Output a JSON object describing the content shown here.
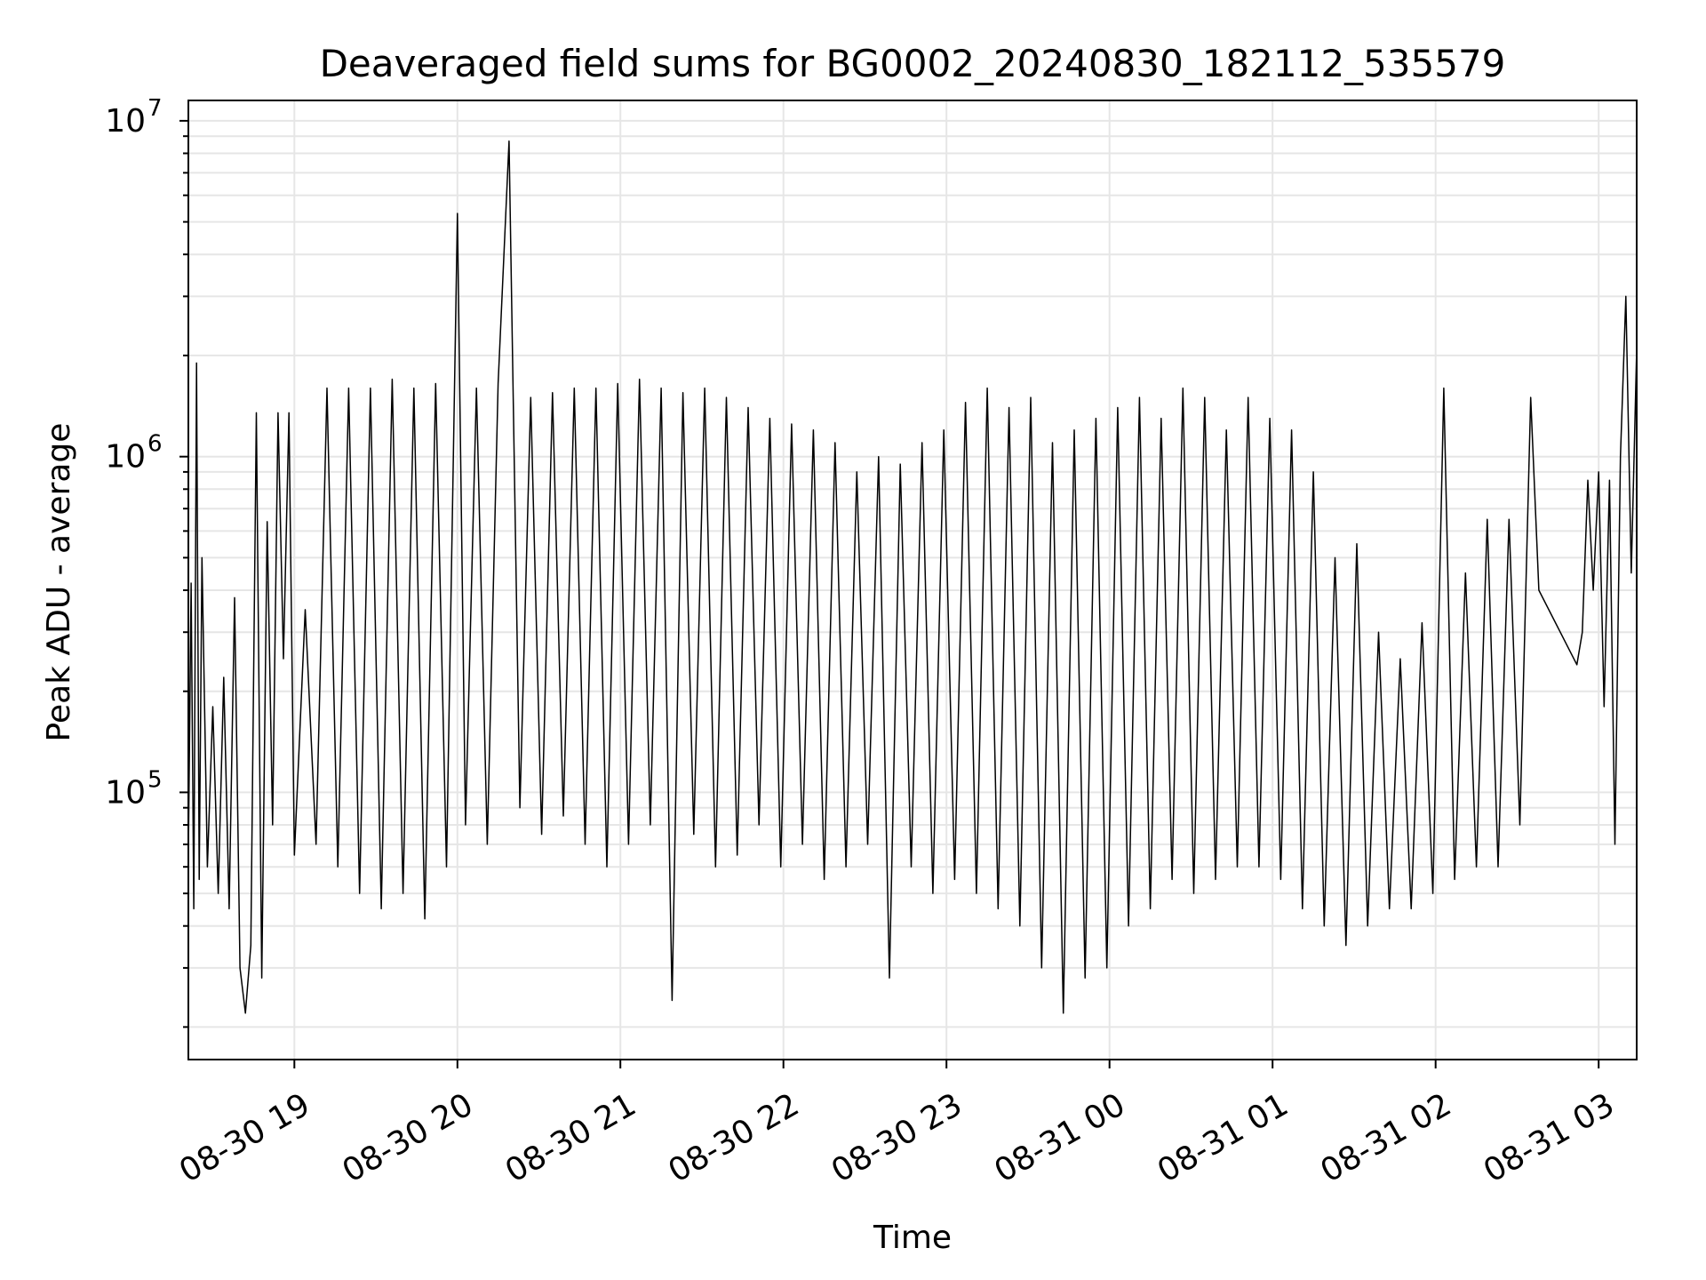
{
  "chart_data": {
    "type": "line",
    "title": "Deaveraged field sums for BG0002_20240830_182112_535579",
    "xlabel": "Time",
    "ylabel": "Peak ADU - average",
    "x_tick_labels": [
      "08-30 19",
      "08-30 20",
      "08-30 21",
      "08-30 22",
      "08-30 23",
      "08-31 00",
      "08-31 01",
      "08-31 02",
      "08-31 03"
    ],
    "x_tick_times": [
      "2024-08-30 19:00",
      "2024-08-30 20:00",
      "2024-08-30 21:00",
      "2024-08-30 22:00",
      "2024-08-30 23:00",
      "2024-08-31 00:00",
      "2024-08-31 01:00",
      "2024-08-31 02:00",
      "2024-08-31 03:00"
    ],
    "y_scale": "log",
    "y_tick_labels": [
      {
        "base": "10",
        "exp": "5"
      },
      {
        "base": "10",
        "exp": "6"
      },
      {
        "base": "10",
        "exp": "7"
      }
    ],
    "y_tick_values": [
      100000,
      1000000,
      10000000
    ],
    "xlim": [
      "2024-08-30 18:21",
      "2024-08-31 03:14"
    ],
    "ylim": [
      16000,
      11500000
    ],
    "grid": true,
    "line_color": "#000000",
    "series": [
      {
        "points": [
          [
            "2024-08-30 18:21",
            65000
          ],
          [
            "2024-08-30 18:22",
            420000
          ],
          [
            "2024-08-30 18:23",
            45000
          ],
          [
            "2024-08-30 18:24",
            1900000
          ],
          [
            "2024-08-30 18:25",
            55000
          ],
          [
            "2024-08-30 18:26",
            500000
          ],
          [
            "2024-08-30 18:28",
            60000
          ],
          [
            "2024-08-30 18:30",
            180000
          ],
          [
            "2024-08-30 18:32",
            50000
          ],
          [
            "2024-08-30 18:34",
            220000
          ],
          [
            "2024-08-30 18:36",
            45000
          ],
          [
            "2024-08-30 18:38",
            380000
          ],
          [
            "2024-08-30 18:40",
            30000
          ],
          [
            "2024-08-30 18:42",
            22000
          ],
          [
            "2024-08-30 18:44",
            35000
          ],
          [
            "2024-08-30 18:46",
            1350000
          ],
          [
            "2024-08-30 18:48",
            28000
          ],
          [
            "2024-08-30 18:50",
            640000
          ],
          [
            "2024-08-30 18:52",
            80000
          ],
          [
            "2024-08-30 18:54",
            1350000
          ],
          [
            "2024-08-30 18:56",
            250000
          ],
          [
            "2024-08-30 18:58",
            1350000
          ],
          [
            "2024-08-30 19:00",
            65000
          ],
          [
            "2024-08-30 19:04",
            350000
          ],
          [
            "2024-08-30 19:08",
            70000
          ],
          [
            "2024-08-30 19:12",
            1600000
          ],
          [
            "2024-08-30 19:16",
            60000
          ],
          [
            "2024-08-30 19:20",
            1600000
          ],
          [
            "2024-08-30 19:24",
            50000
          ],
          [
            "2024-08-30 19:28",
            1600000
          ],
          [
            "2024-08-30 19:32",
            45000
          ],
          [
            "2024-08-30 19:36",
            1700000
          ],
          [
            "2024-08-30 19:40",
            50000
          ],
          [
            "2024-08-30 19:44",
            1600000
          ],
          [
            "2024-08-30 19:48",
            42000
          ],
          [
            "2024-08-30 19:52",
            1650000
          ],
          [
            "2024-08-30 19:56",
            60000
          ],
          [
            "2024-08-30 20:00",
            5300000
          ],
          [
            "2024-08-30 20:03",
            80000
          ],
          [
            "2024-08-30 20:07",
            1600000
          ],
          [
            "2024-08-30 20:11",
            70000
          ],
          [
            "2024-08-30 20:15",
            1650000
          ],
          [
            "2024-08-30 20:19",
            8700000
          ],
          [
            "2024-08-30 20:23",
            90000
          ],
          [
            "2024-08-30 20:27",
            1500000
          ],
          [
            "2024-08-30 20:31",
            75000
          ],
          [
            "2024-08-30 20:35",
            1550000
          ],
          [
            "2024-08-30 20:39",
            85000
          ],
          [
            "2024-08-30 20:43",
            1600000
          ],
          [
            "2024-08-30 20:47",
            70000
          ],
          [
            "2024-08-30 20:51",
            1600000
          ],
          [
            "2024-08-30 20:55",
            60000
          ],
          [
            "2024-08-30 20:59",
            1650000
          ],
          [
            "2024-08-30 21:03",
            70000
          ],
          [
            "2024-08-30 21:07",
            1700000
          ],
          [
            "2024-08-30 21:11",
            80000
          ],
          [
            "2024-08-30 21:15",
            1600000
          ],
          [
            "2024-08-30 21:19",
            24000
          ],
          [
            "2024-08-30 21:23",
            1550000
          ],
          [
            "2024-08-30 21:27",
            75000
          ],
          [
            "2024-08-30 21:31",
            1600000
          ],
          [
            "2024-08-30 21:35",
            60000
          ],
          [
            "2024-08-30 21:39",
            1500000
          ],
          [
            "2024-08-30 21:43",
            65000
          ],
          [
            "2024-08-30 21:47",
            1400000
          ],
          [
            "2024-08-30 21:51",
            80000
          ],
          [
            "2024-08-30 21:55",
            1300000
          ],
          [
            "2024-08-30 21:59",
            60000
          ],
          [
            "2024-08-30 22:03",
            1250000
          ],
          [
            "2024-08-30 22:07",
            70000
          ],
          [
            "2024-08-30 22:11",
            1200000
          ],
          [
            "2024-08-30 22:15",
            55000
          ],
          [
            "2024-08-30 22:19",
            1100000
          ],
          [
            "2024-08-30 22:23",
            60000
          ],
          [
            "2024-08-30 22:27",
            900000
          ],
          [
            "2024-08-30 22:31",
            70000
          ],
          [
            "2024-08-30 22:35",
            1000000
          ],
          [
            "2024-08-30 22:39",
            28000
          ],
          [
            "2024-08-30 22:43",
            950000
          ],
          [
            "2024-08-30 22:47",
            60000
          ],
          [
            "2024-08-30 22:51",
            1100000
          ],
          [
            "2024-08-30 22:55",
            50000
          ],
          [
            "2024-08-30 22:59",
            1200000
          ],
          [
            "2024-08-30 23:03",
            55000
          ],
          [
            "2024-08-30 23:07",
            1450000
          ],
          [
            "2024-08-30 23:11",
            50000
          ],
          [
            "2024-08-30 23:15",
            1600000
          ],
          [
            "2024-08-30 23:19",
            45000
          ],
          [
            "2024-08-30 23:23",
            1400000
          ],
          [
            "2024-08-30 23:27",
            40000
          ],
          [
            "2024-08-30 23:31",
            1500000
          ],
          [
            "2024-08-30 23:35",
            30000
          ],
          [
            "2024-08-30 23:39",
            1100000
          ],
          [
            "2024-08-30 23:43",
            22000
          ],
          [
            "2024-08-30 23:47",
            1200000
          ],
          [
            "2024-08-30 23:51",
            28000
          ],
          [
            "2024-08-30 23:55",
            1300000
          ],
          [
            "2024-08-30 23:59",
            30000
          ],
          [
            "2024-08-31 00:03",
            1400000
          ],
          [
            "2024-08-31 00:07",
            40000
          ],
          [
            "2024-08-31 00:11",
            1500000
          ],
          [
            "2024-08-31 00:15",
            45000
          ],
          [
            "2024-08-31 00:19",
            1300000
          ],
          [
            "2024-08-31 00:23",
            55000
          ],
          [
            "2024-08-31 00:27",
            1600000
          ],
          [
            "2024-08-31 00:31",
            50000
          ],
          [
            "2024-08-31 00:35",
            1500000
          ],
          [
            "2024-08-31 00:39",
            55000
          ],
          [
            "2024-08-31 00:43",
            1200000
          ],
          [
            "2024-08-31 00:47",
            60000
          ],
          [
            "2024-08-31 00:51",
            1500000
          ],
          [
            "2024-08-31 00:55",
            60000
          ],
          [
            "2024-08-31 00:59",
            1300000
          ],
          [
            "2024-08-31 01:03",
            55000
          ],
          [
            "2024-08-31 01:07",
            1200000
          ],
          [
            "2024-08-31 01:11",
            45000
          ],
          [
            "2024-08-31 01:15",
            900000
          ],
          [
            "2024-08-31 01:19",
            40000
          ],
          [
            "2024-08-31 01:23",
            500000
          ],
          [
            "2024-08-31 01:27",
            35000
          ],
          [
            "2024-08-31 01:31",
            550000
          ],
          [
            "2024-08-31 01:35",
            40000
          ],
          [
            "2024-08-31 01:39",
            300000
          ],
          [
            "2024-08-31 01:43",
            45000
          ],
          [
            "2024-08-31 01:47",
            250000
          ],
          [
            "2024-08-31 01:51",
            45000
          ],
          [
            "2024-08-31 01:55",
            320000
          ],
          [
            "2024-08-31 01:59",
            50000
          ],
          [
            "2024-08-31 02:03",
            1600000
          ],
          [
            "2024-08-31 02:07",
            55000
          ],
          [
            "2024-08-31 02:11",
            450000
          ],
          [
            "2024-08-31 02:15",
            60000
          ],
          [
            "2024-08-31 02:19",
            650000
          ],
          [
            "2024-08-31 02:23",
            60000
          ],
          [
            "2024-08-31 02:27",
            650000
          ],
          [
            "2024-08-31 02:31",
            80000
          ],
          [
            "2024-08-31 02:35",
            1500000
          ],
          [
            "2024-08-31 02:38",
            400000
          ],
          [
            "2024-08-31 02:52",
            240000
          ],
          [
            "2024-08-31 02:54",
            300000
          ],
          [
            "2024-08-31 02:56",
            850000
          ],
          [
            "2024-08-31 02:58",
            400000
          ],
          [
            "2024-08-31 03:00",
            900000
          ],
          [
            "2024-08-31 03:02",
            180000
          ],
          [
            "2024-08-31 03:04",
            850000
          ],
          [
            "2024-08-31 03:06",
            70000
          ],
          [
            "2024-08-31 03:08",
            1000000
          ],
          [
            "2024-08-31 03:10",
            3000000
          ],
          [
            "2024-08-31 03:12",
            450000
          ],
          [
            "2024-08-31 03:14",
            2100000
          ]
        ]
      }
    ]
  }
}
